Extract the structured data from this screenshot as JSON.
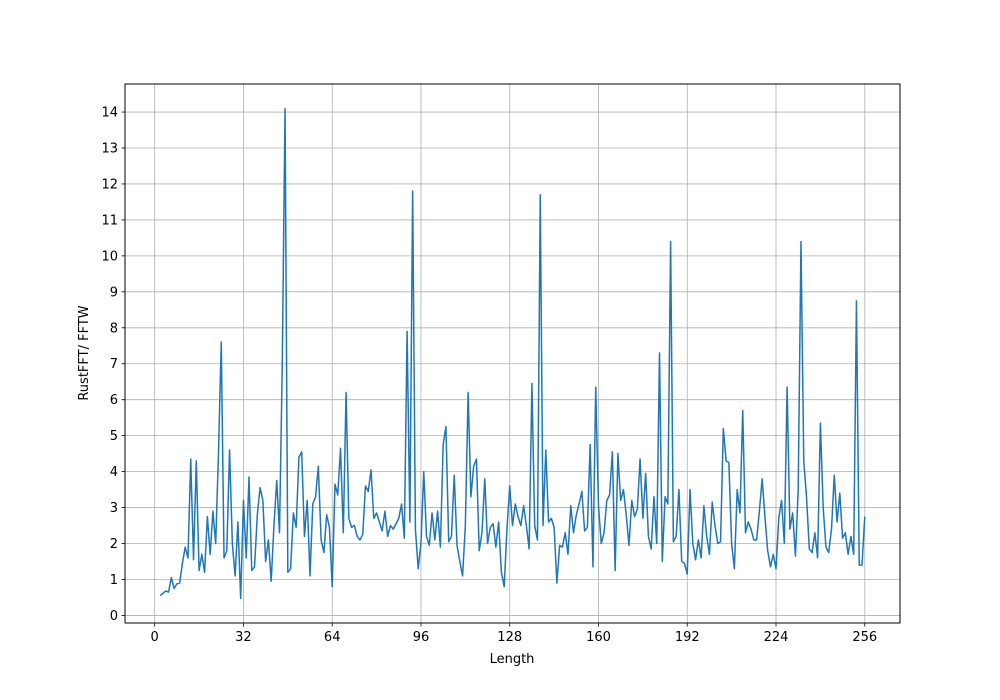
{
  "chart_data": {
    "type": "line",
    "x_label": "Length",
    "y_label": "RustFFT/ FFTW",
    "x": [
      2,
      3,
      4,
      5,
      6,
      7,
      8,
      9,
      10,
      11,
      12,
      13,
      14,
      15,
      16,
      17,
      18,
      19,
      20,
      21,
      22,
      23,
      24,
      25,
      26,
      27,
      28,
      29,
      30,
      31,
      32,
      33,
      34,
      35,
      36,
      37,
      38,
      39,
      40,
      41,
      42,
      43,
      44,
      45,
      46,
      47,
      48,
      49,
      50,
      51,
      52,
      53,
      54,
      55,
      56,
      57,
      58,
      59,
      60,
      61,
      62,
      63,
      64,
      65,
      66,
      67,
      68,
      69,
      70,
      71,
      72,
      73,
      74,
      75,
      76,
      77,
      78,
      79,
      80,
      81,
      82,
      83,
      84,
      85,
      86,
      87,
      88,
      89,
      90,
      91,
      92,
      93,
      94,
      95,
      96,
      97,
      98,
      99,
      100,
      101,
      102,
      103,
      104,
      105,
      106,
      107,
      108,
      109,
      110,
      111,
      112,
      113,
      114,
      115,
      116,
      117,
      118,
      119,
      120,
      121,
      122,
      123,
      124,
      125,
      126,
      127,
      128,
      129,
      130,
      131,
      132,
      133,
      134,
      135,
      136,
      137,
      138,
      139,
      140,
      141,
      142,
      143,
      144,
      145,
      146,
      147,
      148,
      149,
      150,
      151,
      152,
      153,
      154,
      155,
      156,
      157,
      158,
      159,
      160,
      161,
      162,
      163,
      164,
      165,
      166,
      167,
      168,
      169,
      170,
      171,
      172,
      173,
      174,
      175,
      176,
      177,
      178,
      179,
      180,
      181,
      182,
      183,
      184,
      185,
      186,
      187,
      188,
      189,
      190,
      191,
      192,
      193,
      194,
      195,
      196,
      197,
      198,
      199,
      200,
      201,
      202,
      203,
      204,
      205,
      206,
      207,
      208,
      209,
      210,
      211,
      212,
      213,
      214,
      215,
      216,
      217,
      218,
      219,
      220,
      221,
      222,
      223,
      224,
      225,
      226,
      227,
      228,
      229,
      230,
      231,
      232,
      233,
      234,
      235,
      236,
      237,
      238,
      239,
      240,
      241,
      242,
      243,
      244,
      245,
      246,
      247,
      248,
      249,
      250,
      251,
      252,
      253,
      254,
      255,
      256
    ],
    "series": [
      {
        "color": "#1f77b4",
        "values": [
          0.55,
          0.62,
          0.68,
          0.65,
          1.05,
          0.75,
          0.88,
          0.9,
          1.45,
          1.9,
          1.6,
          4.35,
          1.55,
          4.3,
          1.25,
          1.7,
          1.2,
          2.75,
          1.7,
          2.9,
          2.0,
          4.5,
          7.6,
          1.6,
          1.8,
          4.6,
          2.0,
          1.1,
          2.6,
          0.47,
          3.2,
          1.6,
          3.85,
          1.25,
          1.35,
          2.8,
          3.55,
          3.2,
          1.5,
          2.1,
          0.95,
          2.5,
          3.75,
          2.3,
          7.0,
          14.1,
          1.2,
          1.3,
          2.85,
          2.45,
          4.4,
          4.55,
          2.2,
          3.2,
          1.1,
          3.1,
          3.3,
          4.15,
          2.1,
          1.75,
          2.8,
          2.45,
          0.8,
          3.65,
          3.35,
          4.65,
          2.3,
          6.2,
          2.7,
          2.45,
          2.5,
          2.2,
          2.1,
          2.25,
          3.6,
          3.45,
          4.05,
          2.7,
          2.85,
          2.6,
          2.35,
          2.9,
          2.2,
          2.5,
          2.4,
          2.55,
          2.7,
          3.1,
          2.15,
          7.9,
          2.6,
          11.8,
          2.4,
          1.3,
          2.0,
          4.0,
          2.2,
          1.95,
          2.85,
          2.1,
          2.9,
          1.9,
          4.75,
          5.25,
          2.05,
          2.2,
          3.9,
          1.95,
          1.5,
          1.1,
          2.5,
          6.2,
          3.3,
          4.15,
          4.35,
          1.8,
          2.3,
          3.8,
          2.0,
          2.45,
          2.55,
          1.9,
          2.6,
          1.2,
          0.8,
          2.4,
          3.6,
          2.5,
          3.1,
          2.75,
          2.5,
          3.05,
          2.5,
          1.85,
          6.45,
          2.5,
          2.1,
          11.7,
          2.5,
          4.6,
          2.6,
          2.7,
          2.45,
          0.9,
          1.95,
          1.9,
          2.3,
          1.7,
          3.05,
          2.3,
          2.8,
          3.1,
          3.45,
          2.35,
          2.45,
          4.75,
          1.35,
          6.35,
          3.05,
          2.0,
          2.3,
          3.2,
          3.35,
          4.55,
          1.25,
          4.5,
          3.2,
          3.5,
          2.8,
          1.95,
          3.2,
          2.75,
          2.95,
          4.35,
          2.7,
          3.95,
          2.2,
          1.85,
          3.3,
          2.0,
          7.3,
          1.5,
          3.3,
          3.1,
          10.4,
          2.05,
          2.2,
          3.5,
          1.5,
          1.45,
          1.15,
          3.5,
          2.0,
          1.55,
          2.1,
          1.6,
          3.05,
          2.2,
          1.7,
          3.15,
          2.5,
          2.0,
          2.05,
          5.2,
          4.3,
          4.25,
          2.0,
          1.3,
          3.5,
          2.85,
          5.7,
          2.3,
          2.6,
          2.4,
          2.1,
          2.1,
          2.9,
          3.8,
          2.75,
          1.8,
          1.35,
          1.7,
          1.3,
          2.7,
          3.2,
          2.0,
          6.35,
          2.4,
          2.85,
          1.65,
          3.5,
          10.4,
          4.3,
          3.3,
          1.85,
          1.75,
          2.3,
          1.6,
          5.35,
          3.0,
          1.9,
          1.75,
          2.4,
          3.9,
          2.6,
          3.4,
          2.15,
          2.3,
          1.7,
          2.2,
          1.7,
          8.75,
          1.4,
          1.4,
          2.75
        ]
      }
    ],
    "xlim": [
      -10.7,
      268.7
    ],
    "ylim": [
      -0.21,
      14.78
    ],
    "xticks": [
      0,
      32,
      64,
      96,
      128,
      160,
      192,
      224,
      256
    ],
    "yticks": [
      0,
      1,
      2,
      3,
      4,
      5,
      6,
      7,
      8,
      9,
      10,
      11,
      12,
      13,
      14
    ],
    "grid": true
  }
}
